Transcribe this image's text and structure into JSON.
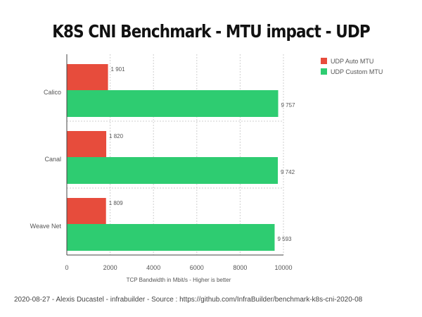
{
  "chart_data": {
    "type": "bar",
    "orientation": "horizontal",
    "title": "K8S CNI Benchmark  - MTU impact - UDP",
    "xlabel": "TCP Bandwidth in Mbit/s - Higher is better",
    "ylabel": "",
    "xlim": [
      0,
      10000
    ],
    "xticks": [
      "0",
      "2000",
      "4000",
      "6000",
      "8000",
      "10000"
    ],
    "grid": true,
    "legend_position": "top-right",
    "categories": [
      "Calico",
      "Canal",
      "Weave Net"
    ],
    "series": [
      {
        "name": "UDP Auto MTU",
        "color": "#e74c3c",
        "values": [
          1901,
          1820,
          1809
        ],
        "labels": [
          "1 901",
          "1 820",
          "1 809"
        ]
      },
      {
        "name": "UDP Custom MTU",
        "color": "#2ecc71",
        "values": [
          9757,
          9742,
          9593
        ],
        "labels": [
          "9 757",
          "9 742",
          "9 593"
        ]
      }
    ]
  },
  "footer": "2020-08-27 - Alexis Ducastel - infrabuilder - Source : https://github.com/InfraBuilder/benchmark-k8s-cni-2020-08"
}
